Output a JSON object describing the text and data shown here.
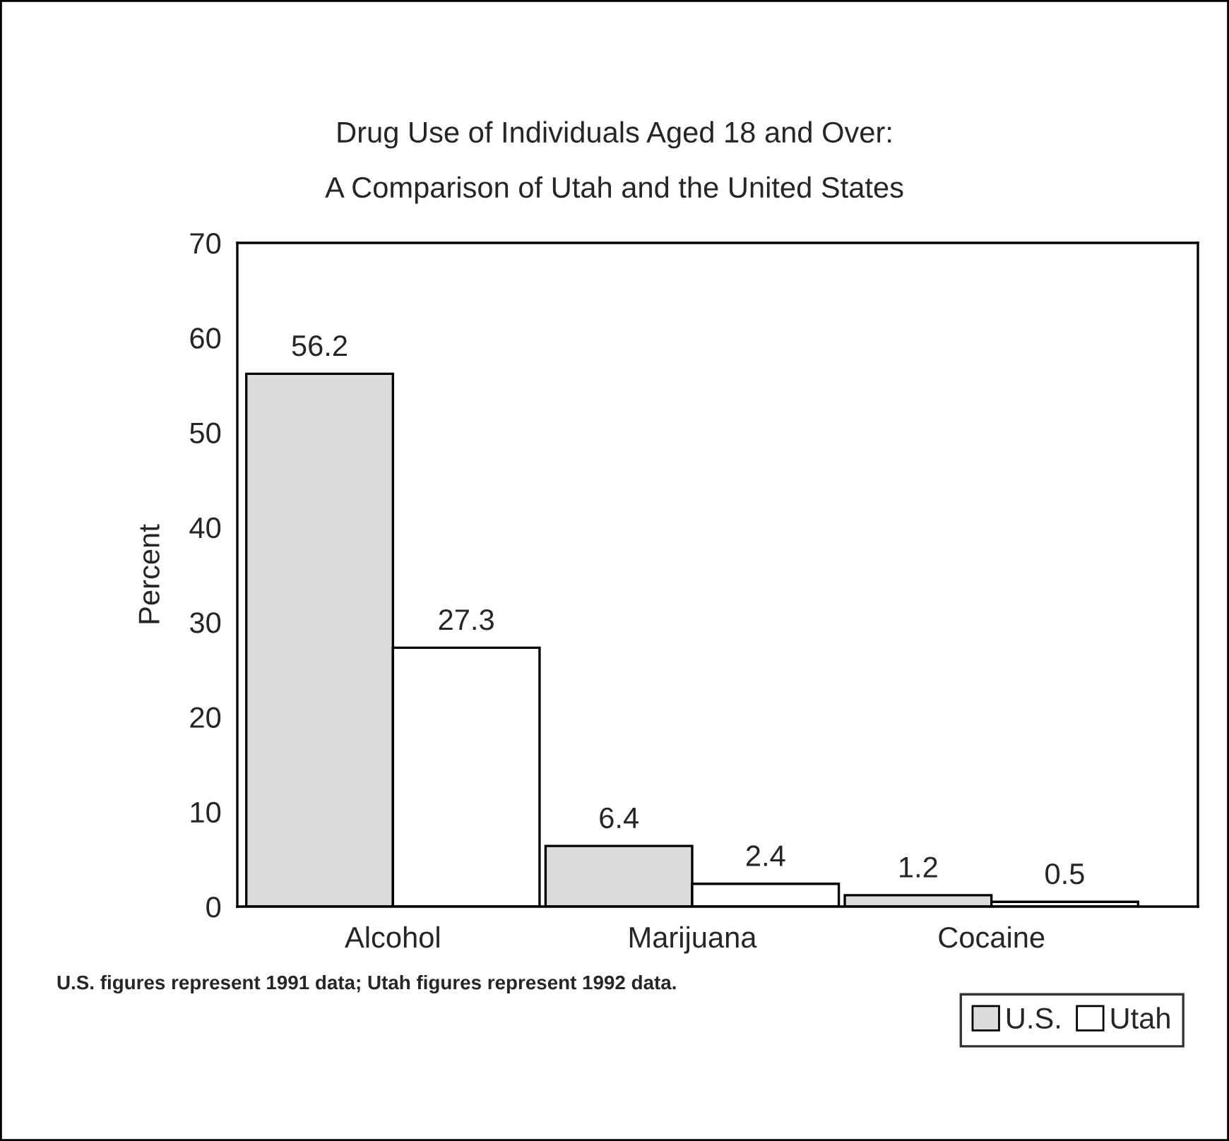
{
  "chart_data": {
    "type": "bar",
    "title": "Drug Use of Individuals Aged 18 and Over:\nA Comparison of Utah and the United States",
    "ylabel": "Percent",
    "categories": [
      "Alcohol",
      "Marijuana",
      "Cocaine"
    ],
    "series": [
      {
        "name": "U.S.",
        "color": "#dcdcdc",
        "values": [
          56.2,
          6.4,
          1.2
        ]
      },
      {
        "name": "Utah",
        "color": "#ffffff",
        "values": [
          27.3,
          2.4,
          0.5
        ]
      }
    ],
    "ylim": [
      0,
      70
    ],
    "yticks": [
      0,
      10,
      20,
      30,
      40,
      50,
      60,
      70
    ],
    "data_labels": true,
    "grid": false,
    "legend": "bottom right",
    "annotations": [
      "U.S. figures represent 1991 data; Utah figures represent 1992 data."
    ]
  }
}
